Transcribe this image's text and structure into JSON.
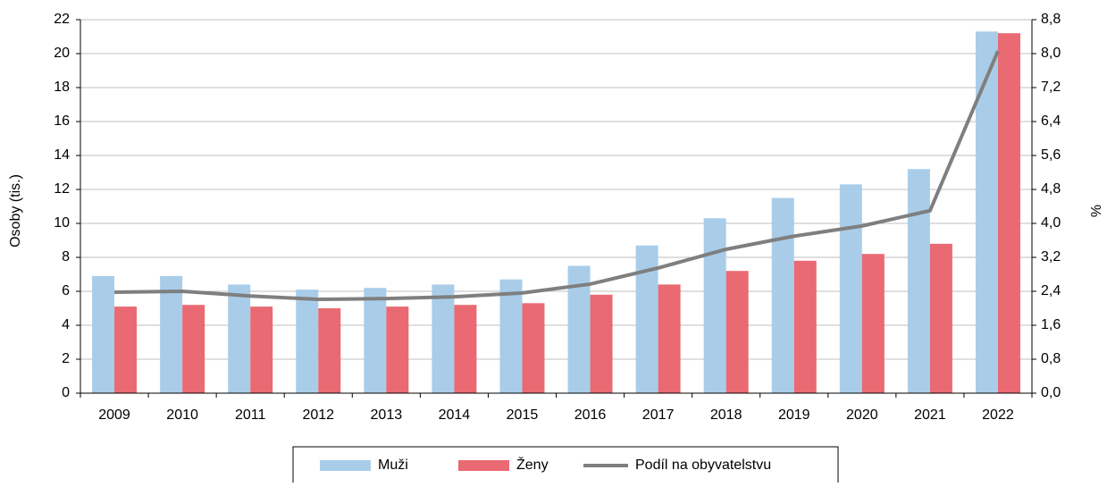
{
  "chart_data": {
    "type": "bar",
    "y_label": "Osoby (tis.)",
    "y2_label": "%",
    "categories": [
      "2009",
      "2010",
      "2011",
      "2012",
      "2013",
      "2014",
      "2015",
      "2016",
      "2017",
      "2018",
      "2019",
      "2020",
      "2021",
      "2022"
    ],
    "series": [
      {
        "name": "Muži",
        "color": "#a9cde9",
        "values": [
          6.9,
          6.9,
          6.4,
          6.1,
          6.2,
          6.4,
          6.7,
          7.5,
          8.7,
          10.3,
          11.5,
          12.3,
          13.2,
          21.3
        ]
      },
      {
        "name": "Ženy",
        "color": "#e96a73",
        "values": [
          5.1,
          5.2,
          5.1,
          5.0,
          5.1,
          5.2,
          5.3,
          5.8,
          6.4,
          7.2,
          7.8,
          8.2,
          8.8,
          21.2
        ]
      },
      {
        "name": "Podíl na obyvatelstvu",
        "color": "#7f7f7f",
        "type": "line",
        "axis": "y2",
        "values": [
          2.38,
          2.4,
          2.29,
          2.21,
          2.23,
          2.27,
          2.36,
          2.57,
          2.95,
          3.39,
          3.7,
          3.94,
          4.3,
          8.06
        ]
      }
    ],
    "ylim": [
      0,
      22
    ],
    "yticks": [
      0,
      2,
      4,
      6,
      8,
      10,
      12,
      14,
      16,
      18,
      20,
      22
    ],
    "y2lim": [
      0,
      8.8
    ],
    "y2ticks": [
      {
        "value": 0,
        "label": "0,0"
      },
      {
        "value": 0.8,
        "label": "0,8"
      },
      {
        "value": 1.6,
        "label": "1,6"
      },
      {
        "value": 2.4,
        "label": "2,4"
      },
      {
        "value": 3.2,
        "label": "3,2"
      },
      {
        "value": 4,
        "label": "4,0"
      },
      {
        "value": 4.8,
        "label": "4,8"
      },
      {
        "value": 5.6,
        "label": "5,6"
      },
      {
        "value": 6.4,
        "label": "6,4"
      },
      {
        "value": 7.2,
        "label": "7,2"
      },
      {
        "value": 8,
        "label": "8,0"
      },
      {
        "value": 8.8,
        "label": "8,8"
      }
    ],
    "grid": true
  }
}
